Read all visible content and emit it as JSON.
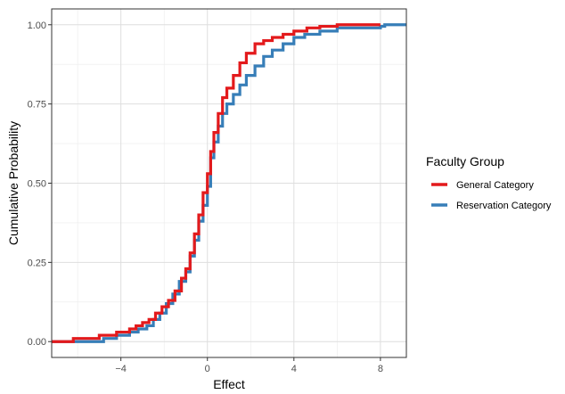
{
  "chart_data": {
    "type": "line",
    "subtype": "step-ecdf",
    "xlabel": "Effect",
    "ylabel": "Cumulative Probability",
    "xlim": [
      -7.2,
      9.2
    ],
    "ylim": [
      -0.05,
      1.05
    ],
    "x_ticks": [
      -4,
      0,
      4,
      8
    ],
    "x_tick_labels": [
      "−4",
      "0",
      "4",
      "8"
    ],
    "y_ticks": [
      0,
      0.25,
      0.5,
      0.75,
      1
    ],
    "y_tick_labels": [
      "0.00",
      "0.25",
      "0.50",
      "0.75",
      "1.00"
    ],
    "grid": true,
    "legend": {
      "title": "Faculty Group",
      "position": "right"
    },
    "series": [
      {
        "name": "General Category",
        "color": "#e31a1c",
        "points": [
          [
            -7.2,
            0.0
          ],
          [
            -6.2,
            0.0
          ],
          [
            -6.2,
            0.01
          ],
          [
            -5.2,
            0.01
          ],
          [
            -5.0,
            0.02
          ],
          [
            -4.5,
            0.02
          ],
          [
            -4.2,
            0.03
          ],
          [
            -3.8,
            0.03
          ],
          [
            -3.6,
            0.04
          ],
          [
            -3.3,
            0.05
          ],
          [
            -3.0,
            0.06
          ],
          [
            -2.7,
            0.07
          ],
          [
            -2.4,
            0.09
          ],
          [
            -2.1,
            0.11
          ],
          [
            -1.8,
            0.13
          ],
          [
            -1.5,
            0.16
          ],
          [
            -1.2,
            0.2
          ],
          [
            -1.0,
            0.23
          ],
          [
            -0.8,
            0.28
          ],
          [
            -0.6,
            0.34
          ],
          [
            -0.4,
            0.4
          ],
          [
            -0.2,
            0.47
          ],
          [
            0.0,
            0.53
          ],
          [
            0.15,
            0.6
          ],
          [
            0.3,
            0.66
          ],
          [
            0.5,
            0.72
          ],
          [
            0.7,
            0.77
          ],
          [
            0.9,
            0.8
          ],
          [
            1.2,
            0.84
          ],
          [
            1.5,
            0.88
          ],
          [
            1.8,
            0.91
          ],
          [
            2.2,
            0.94
          ],
          [
            2.6,
            0.95
          ],
          [
            3.0,
            0.96
          ],
          [
            3.5,
            0.97
          ],
          [
            4.0,
            0.98
          ],
          [
            4.6,
            0.99
          ],
          [
            5.2,
            0.995
          ],
          [
            6.0,
            1.0
          ],
          [
            8.0,
            1.0
          ]
        ]
      },
      {
        "name": "Reservation Category",
        "color": "#377eb8",
        "points": [
          [
            -7.2,
            0.0
          ],
          [
            -5.0,
            0.0
          ],
          [
            -4.8,
            0.01
          ],
          [
            -4.2,
            0.02
          ],
          [
            -3.6,
            0.03
          ],
          [
            -3.2,
            0.04
          ],
          [
            -2.8,
            0.05
          ],
          [
            -2.5,
            0.07
          ],
          [
            -2.2,
            0.09
          ],
          [
            -1.9,
            0.12
          ],
          [
            -1.6,
            0.15
          ],
          [
            -1.3,
            0.19
          ],
          [
            -1.0,
            0.22
          ],
          [
            -0.8,
            0.27
          ],
          [
            -0.6,
            0.32
          ],
          [
            -0.4,
            0.38
          ],
          [
            -0.2,
            0.43
          ],
          [
            0.0,
            0.49
          ],
          [
            0.15,
            0.58
          ],
          [
            0.3,
            0.63
          ],
          [
            0.5,
            0.68
          ],
          [
            0.7,
            0.72
          ],
          [
            0.9,
            0.75
          ],
          [
            1.2,
            0.78
          ],
          [
            1.5,
            0.81
          ],
          [
            1.8,
            0.84
          ],
          [
            2.2,
            0.87
          ],
          [
            2.6,
            0.9
          ],
          [
            3.0,
            0.92
          ],
          [
            3.5,
            0.94
          ],
          [
            4.0,
            0.96
          ],
          [
            4.5,
            0.97
          ],
          [
            5.2,
            0.98
          ],
          [
            6.0,
            0.99
          ],
          [
            8.0,
            0.995
          ],
          [
            8.2,
            1.0
          ],
          [
            9.2,
            1.0
          ]
        ]
      }
    ]
  }
}
